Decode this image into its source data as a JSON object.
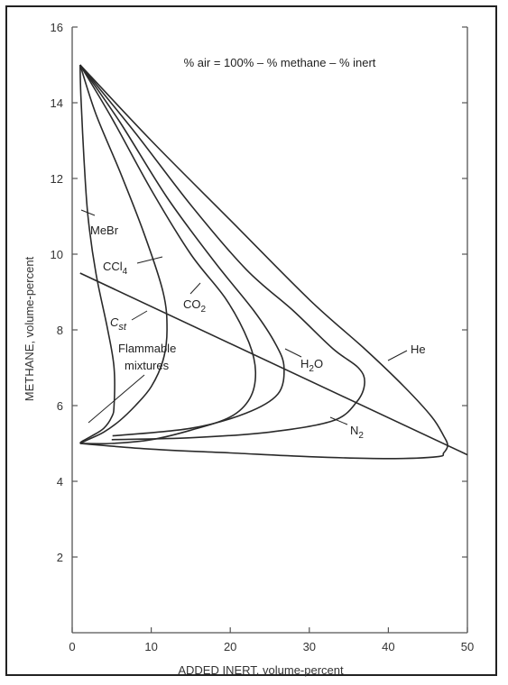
{
  "chart_data": {
    "type": "line",
    "title": "% air = 100% – % methane – % inert",
    "xlabel": "ADDED INERT, volume-percent",
    "ylabel": "METHANE, volume-percent",
    "xlim": [
      0,
      50
    ],
    "ylim": [
      0,
      16
    ],
    "xticks": [
      "0",
      "10",
      "20",
      "30",
      "40",
      "50"
    ],
    "yticks": [
      "2",
      "4",
      "6",
      "8",
      "10",
      "12",
      "14",
      "16"
    ],
    "grid": false,
    "series": [
      {
        "name": "MeBr",
        "x": [
          1,
          1.1,
          1.5,
          2.0,
          3.0,
          4.5,
          5.3,
          5.3,
          5.0,
          4.0,
          2.5,
          1.2,
          1
        ],
        "y": [
          15,
          14.2,
          12.5,
          11,
          9.5,
          8.0,
          7.0,
          6.0,
          5.7,
          5.4,
          5.2,
          5.05,
          5
        ]
      },
      {
        "name": "CCl4",
        "x": [
          1,
          3,
          6,
          9,
          11.5,
          12.0,
          11.5,
          10.0,
          8.0,
          6.0,
          4.0,
          2.0,
          1
        ],
        "y": [
          15,
          13.7,
          12.2,
          10.6,
          9.0,
          8.0,
          7.2,
          6.5,
          6.0,
          5.6,
          5.3,
          5.1,
          5
        ]
      },
      {
        "name": "CO2",
        "x": [
          1,
          5,
          10,
          15,
          19.5,
          22.3,
          23.2,
          22.5,
          20.0,
          15.0,
          10.0,
          5.0,
          1
        ],
        "y": [
          15,
          13.6,
          11.7,
          10.0,
          8.8,
          7.7,
          6.9,
          6.2,
          5.7,
          5.35,
          5.1,
          5.0,
          5
        ]
      },
      {
        "name": "H2O",
        "x": [
          1,
          6,
          12,
          18,
          23,
          25.8,
          26.8,
          26.0,
          22.0,
          15.0,
          5.1
        ],
        "y": [
          15,
          13.5,
          11.5,
          9.8,
          8.5,
          7.6,
          7.0,
          6.3,
          5.8,
          5.4,
          5.2
        ]
      },
      {
        "name": "N2",
        "x": [
          1,
          8,
          15,
          22,
          28,
          33,
          36.2,
          37.0,
          36.0,
          33.0,
          25.0,
          15.0,
          5.0
        ],
        "y": [
          15,
          13.2,
          11.3,
          9.6,
          8.5,
          7.5,
          7.0,
          6.6,
          6.1,
          5.6,
          5.3,
          5.15,
          5.1
        ]
      },
      {
        "name": "He",
        "x": [
          1,
          10,
          20,
          30,
          37,
          42,
          45.5,
          47.0,
          47.5,
          47.0,
          46.2,
          40.0,
          30.0,
          20.0,
          10.0,
          1
        ],
        "y": [
          15,
          13.0,
          10.9,
          8.8,
          7.5,
          6.5,
          5.7,
          5.2,
          4.95,
          4.75,
          4.65,
          4.6,
          4.65,
          4.75,
          4.85,
          5
        ]
      },
      {
        "name": "Cst",
        "x": [
          1,
          50
        ],
        "y": [
          9.5,
          4.7
        ]
      }
    ],
    "annotations": {
      "mebr": "MeBr",
      "ccl4": "CCl",
      "ccl4_sub": "4",
      "co2": "CO",
      "co2_sub": "2",
      "cst": "C",
      "cst_sub": "st",
      "flammable1": "Flammable",
      "flammable2": "mixtures",
      "h2o_h": "H",
      "h2o_sub": "2",
      "h2o_o": "O",
      "n2": "N",
      "n2_sub": "2",
      "he": "He"
    },
    "colors": {
      "line": "#2a2a2a",
      "axis": "#555555",
      "text": "#333333"
    }
  }
}
